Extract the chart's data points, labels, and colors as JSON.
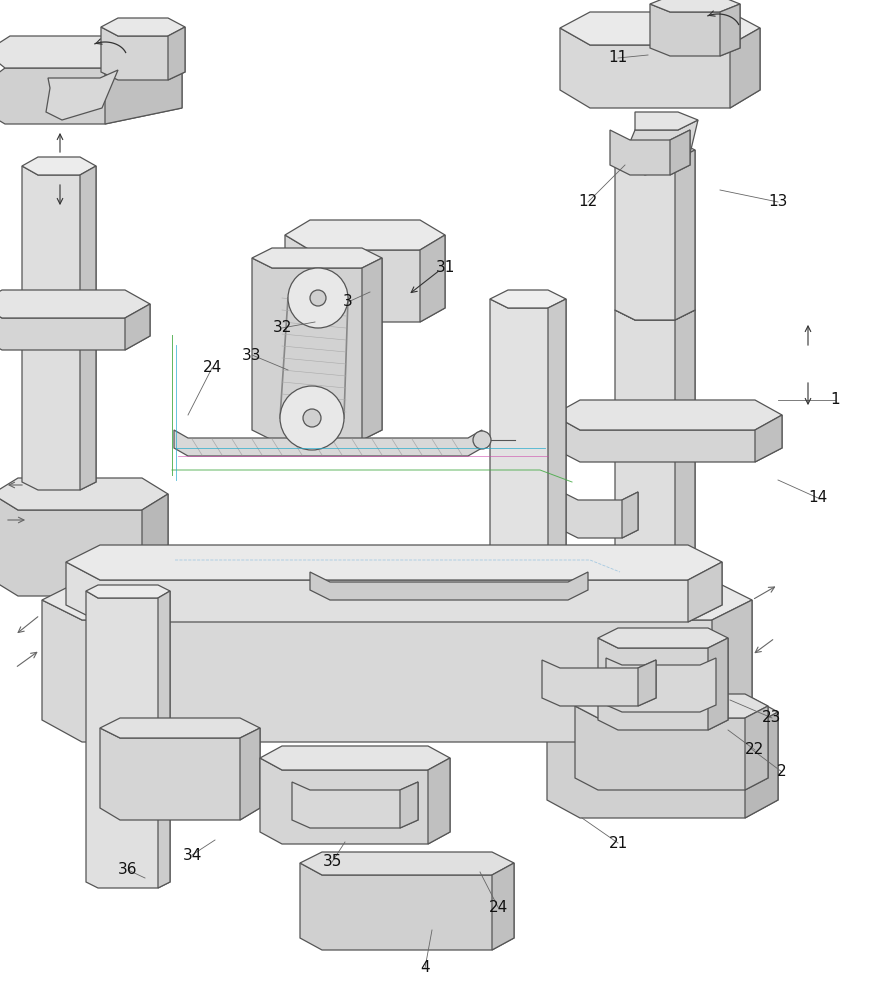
{
  "background_color": "#ffffff",
  "line_color": "#555555",
  "labels": [
    [
      "1",
      835,
      400
    ],
    [
      "2",
      782,
      772
    ],
    [
      "3",
      348,
      302
    ],
    [
      "4",
      425,
      968
    ],
    [
      "11",
      618,
      58
    ],
    [
      "12",
      588,
      202
    ],
    [
      "13",
      778,
      202
    ],
    [
      "14",
      818,
      498
    ],
    [
      "21",
      618,
      843
    ],
    [
      "22",
      755,
      750
    ],
    [
      "23",
      772,
      718
    ],
    [
      "24",
      212,
      368
    ],
    [
      "24",
      498,
      907
    ],
    [
      "31",
      445,
      268
    ],
    [
      "32",
      282,
      328
    ],
    [
      "33",
      252,
      355
    ],
    [
      "34",
      192,
      855
    ],
    [
      "35",
      332,
      862
    ],
    [
      "36",
      128,
      870
    ]
  ]
}
